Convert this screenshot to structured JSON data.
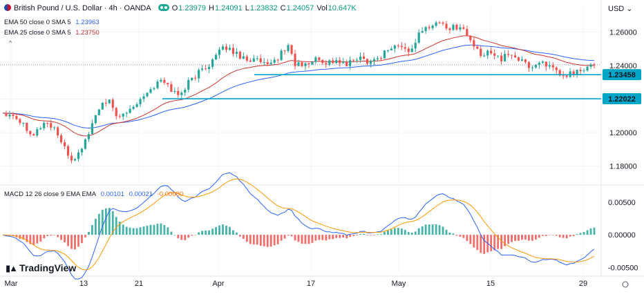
{
  "header": {
    "symbol": "British Pound / U.S. Dollar · 4h · OANDA",
    "ohlc": [
      {
        "key": "O",
        "value": "1.23979"
      },
      {
        "key": "H",
        "value": "1.24091"
      },
      {
        "key": "L",
        "value": "1.23832"
      },
      {
        "key": "C",
        "value": "1.24057"
      }
    ],
    "volume_key": "Vol",
    "volume_value": "10.647K",
    "currency": "USD",
    "indicators": [
      {
        "label": "EMA 50 close 0 SMA 5",
        "value": "1.23963",
        "color": "#2962ff"
      },
      {
        "label": "EMA 25 close 0 SMA 5",
        "value": "1.23750",
        "color": "#d0312d"
      }
    ],
    "macd_label": "MACD 12 26 close 9 EMA EMA",
    "macd_values": [
      "0.00101",
      "0.00021",
      "-0.00080"
    ],
    "collapse_glyph": "^"
  },
  "logo_text": "TradingView",
  "colors": {
    "up": "#26a69a",
    "down": "#ef5350",
    "ema50": "#2962ff",
    "ema25": "#d0312d",
    "support": "#00a5c8",
    "macd": "#2962ff",
    "signal": "#ff9800",
    "hist_up": "#26a69a",
    "hist_down": "#ef5350",
    "grid": "#f0f3fa"
  },
  "chart_data": {
    "type": "candlestick",
    "timeframe": "4h",
    "x_tick_labels": [
      "Mar",
      "13",
      "21",
      "Apr",
      "17",
      "May",
      "15",
      "29"
    ],
    "price_axis": {
      "ylim": [
        1.17,
        1.275
      ],
      "ticks": [
        "1.26000",
        "1.24000",
        "1.22000",
        "1.20000",
        "1.18000"
      ]
    },
    "macd_axis": {
      "ylim": [
        -0.0058,
        0.0072
      ],
      "ticks": [
        "0.00500",
        "0.00000",
        "-0.00500"
      ]
    },
    "horizontal_lines": [
      {
        "label": "1.23458",
        "value": 1.23458
      },
      {
        "label": "1.22022",
        "value": 1.22022
      }
    ],
    "price_path_approx": [
      [
        0,
        1.212
      ],
      [
        3,
        1.211
      ],
      [
        6,
        1.205
      ],
      [
        9,
        1.199
      ],
      [
        12,
        1.206
      ],
      [
        15,
        1.203
      ],
      [
        18,
        1.19
      ],
      [
        20,
        1.184
      ],
      [
        22,
        1.187
      ],
      [
        25,
        1.2
      ],
      [
        28,
        1.215
      ],
      [
        31,
        1.218
      ],
      [
        34,
        1.208
      ],
      [
        37,
        1.214
      ],
      [
        40,
        1.221
      ],
      [
        43,
        1.226
      ],
      [
        46,
        1.231
      ],
      [
        48,
        1.228
      ],
      [
        51,
        1.222
      ],
      [
        54,
        1.23
      ],
      [
        57,
        1.236
      ],
      [
        60,
        1.241
      ],
      [
        63,
        1.248
      ],
      [
        65,
        1.251
      ],
      [
        68,
        1.247
      ],
      [
        71,
        1.244
      ],
      [
        74,
        1.243
      ],
      [
        77,
        1.239
      ],
      [
        80,
        1.245
      ],
      [
        83,
        1.252
      ],
      [
        85,
        1.241
      ],
      [
        88,
        1.24
      ],
      [
        91,
        1.244
      ],
      [
        94,
        1.242
      ],
      [
        97,
        1.243
      ],
      [
        100,
        1.24
      ],
      [
        103,
        1.245
      ],
      [
        106,
        1.243
      ],
      [
        109,
        1.244
      ],
      [
        112,
        1.25
      ],
      [
        115,
        1.252
      ],
      [
        118,
        1.248
      ],
      [
        121,
        1.258
      ],
      [
        124,
        1.264
      ],
      [
        127,
        1.266
      ],
      [
        130,
        1.262
      ],
      [
        133,
        1.264
      ],
      [
        136,
        1.255
      ],
      [
        139,
        1.245
      ],
      [
        142,
        1.249
      ],
      [
        145,
        1.244
      ],
      [
        148,
        1.247
      ],
      [
        151,
        1.242
      ],
      [
        154,
        1.239
      ],
      [
        157,
        1.243
      ],
      [
        160,
        1.237
      ],
      [
        163,
        1.233
      ],
      [
        166,
        1.236
      ],
      [
        169,
        1.237
      ],
      [
        172,
        1.241
      ]
    ],
    "volume_last": "10.647K"
  }
}
